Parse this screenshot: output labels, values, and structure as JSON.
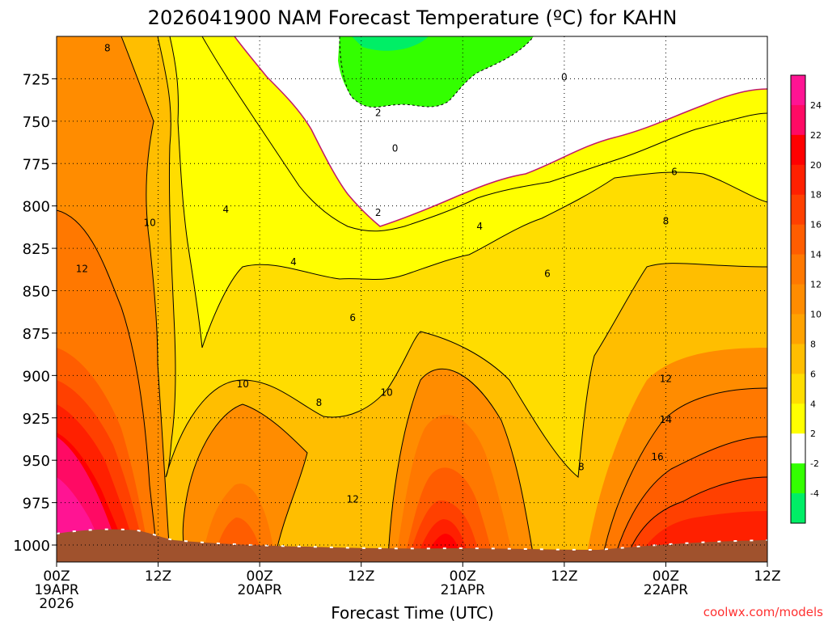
{
  "chart_data": {
    "type": "heatmap",
    "title": "2026041900 NAM Forecast Temperature (ºC) for KAHN",
    "xlabel": "Forecast Time (UTC)",
    "ylabel": "",
    "credit": "coolwx.com/models",
    "y_axis": {
      "unit": "hPa",
      "range": [
        1010,
        700
      ],
      "ticks": [
        {
          "value": 725,
          "label": "725"
        },
        {
          "value": 750,
          "label": "750"
        },
        {
          "value": 775,
          "label": "775"
        },
        {
          "value": 800,
          "label": "800"
        },
        {
          "value": 825,
          "label": "825"
        },
        {
          "value": 850,
          "label": "850"
        },
        {
          "value": 875,
          "label": "875"
        },
        {
          "value": 900,
          "label": "900"
        },
        {
          "value": 925,
          "label": "925"
        },
        {
          "value": 950,
          "label": "950"
        },
        {
          "value": 975,
          "label": "975"
        },
        {
          "value": 1000,
          "label": "1000"
        }
      ]
    },
    "x_axis": {
      "unit": "hours from 00Z 19APR",
      "range": [
        0,
        84
      ],
      "ticks": [
        {
          "hour": 0,
          "label": "00Z",
          "date": "19APR",
          "year": "2026"
        },
        {
          "hour": 12,
          "label": "12Z",
          "date": "",
          "year": ""
        },
        {
          "hour": 24,
          "label": "00Z",
          "date": "20APR",
          "year": ""
        },
        {
          "hour": 36,
          "label": "12Z",
          "date": "",
          "year": ""
        },
        {
          "hour": 48,
          "label": "00Z",
          "date": "21APR",
          "year": ""
        },
        {
          "hour": 60,
          "label": "12Z",
          "date": "",
          "year": ""
        },
        {
          "hour": 72,
          "label": "00Z",
          "date": "22APR",
          "year": ""
        },
        {
          "hour": 84,
          "label": "12Z",
          "date": "",
          "year": ""
        }
      ]
    },
    "colorbar": {
      "labels": [
        "24",
        "22",
        "20",
        "18",
        "16",
        "14",
        "12",
        "10",
        "8",
        "6",
        "4",
        "2",
        "-2",
        "-4"
      ],
      "bins": [
        {
          "min": 24,
          "max": 26,
          "color": "#ff1493"
        },
        {
          "min": 22,
          "max": 24,
          "color": "#ff0a64"
        },
        {
          "min": 20,
          "max": 22,
          "color": "#ff0000"
        },
        {
          "min": 18,
          "max": 20,
          "color": "#ff2000"
        },
        {
          "min": 16,
          "max": 18,
          "color": "#ff4000"
        },
        {
          "min": 14,
          "max": 16,
          "color": "#ff5d00"
        },
        {
          "min": 12,
          "max": 14,
          "color": "#ff7800"
        },
        {
          "min": 10,
          "max": 12,
          "color": "#ff8c00"
        },
        {
          "min": 8,
          "max": 10,
          "color": "#ffa200"
        },
        {
          "min": 6,
          "max": 8,
          "color": "#ffbe00"
        },
        {
          "min": 4,
          "max": 6,
          "color": "#ffdd00"
        },
        {
          "min": 2,
          "max": 4,
          "color": "#ffff00"
        },
        {
          "min": -2,
          "max": 2,
          "color": "#ffffff"
        },
        {
          "min": -4,
          "max": -2,
          "color": "#33ff00"
        },
        {
          "min": -6,
          "max": -4,
          "color": "#00ee66"
        }
      ]
    },
    "ground_color": "#a0522d",
    "contour_labels": [
      {
        "value": "8",
        "hour": 6,
        "p": 707
      },
      {
        "value": "10",
        "hour": 11,
        "p": 810
      },
      {
        "value": "12",
        "hour": 3,
        "p": 837
      },
      {
        "value": "4",
        "hour": 20,
        "p": 802
      },
      {
        "value": "4",
        "hour": 28,
        "p": 833
      },
      {
        "value": "2",
        "hour": 38,
        "p": 745
      },
      {
        "value": "0",
        "hour": 40,
        "p": 766
      },
      {
        "value": "2",
        "hour": 38,
        "p": 804
      },
      {
        "value": "0",
        "hour": 60,
        "p": 724
      },
      {
        "value": "4",
        "hour": 50,
        "p": 812
      },
      {
        "value": "6",
        "hour": 58,
        "p": 840
      },
      {
        "value": "6",
        "hour": 35,
        "p": 866
      },
      {
        "value": "8",
        "hour": 31,
        "p": 916
      },
      {
        "value": "10",
        "hour": 22,
        "p": 905
      },
      {
        "value": "10",
        "hour": 39,
        "p": 910
      },
      {
        "value": "12",
        "hour": 35,
        "p": 973
      },
      {
        "value": "6",
        "hour": 73,
        "p": 780
      },
      {
        "value": "8",
        "hour": 72,
        "p": 809
      },
      {
        "value": "12",
        "hour": 72,
        "p": 902
      },
      {
        "value": "14",
        "hour": 72,
        "p": 926
      },
      {
        "value": "16",
        "hour": 71,
        "p": 948
      },
      {
        "value": "8",
        "hour": 62,
        "p": 954
      }
    ]
  }
}
